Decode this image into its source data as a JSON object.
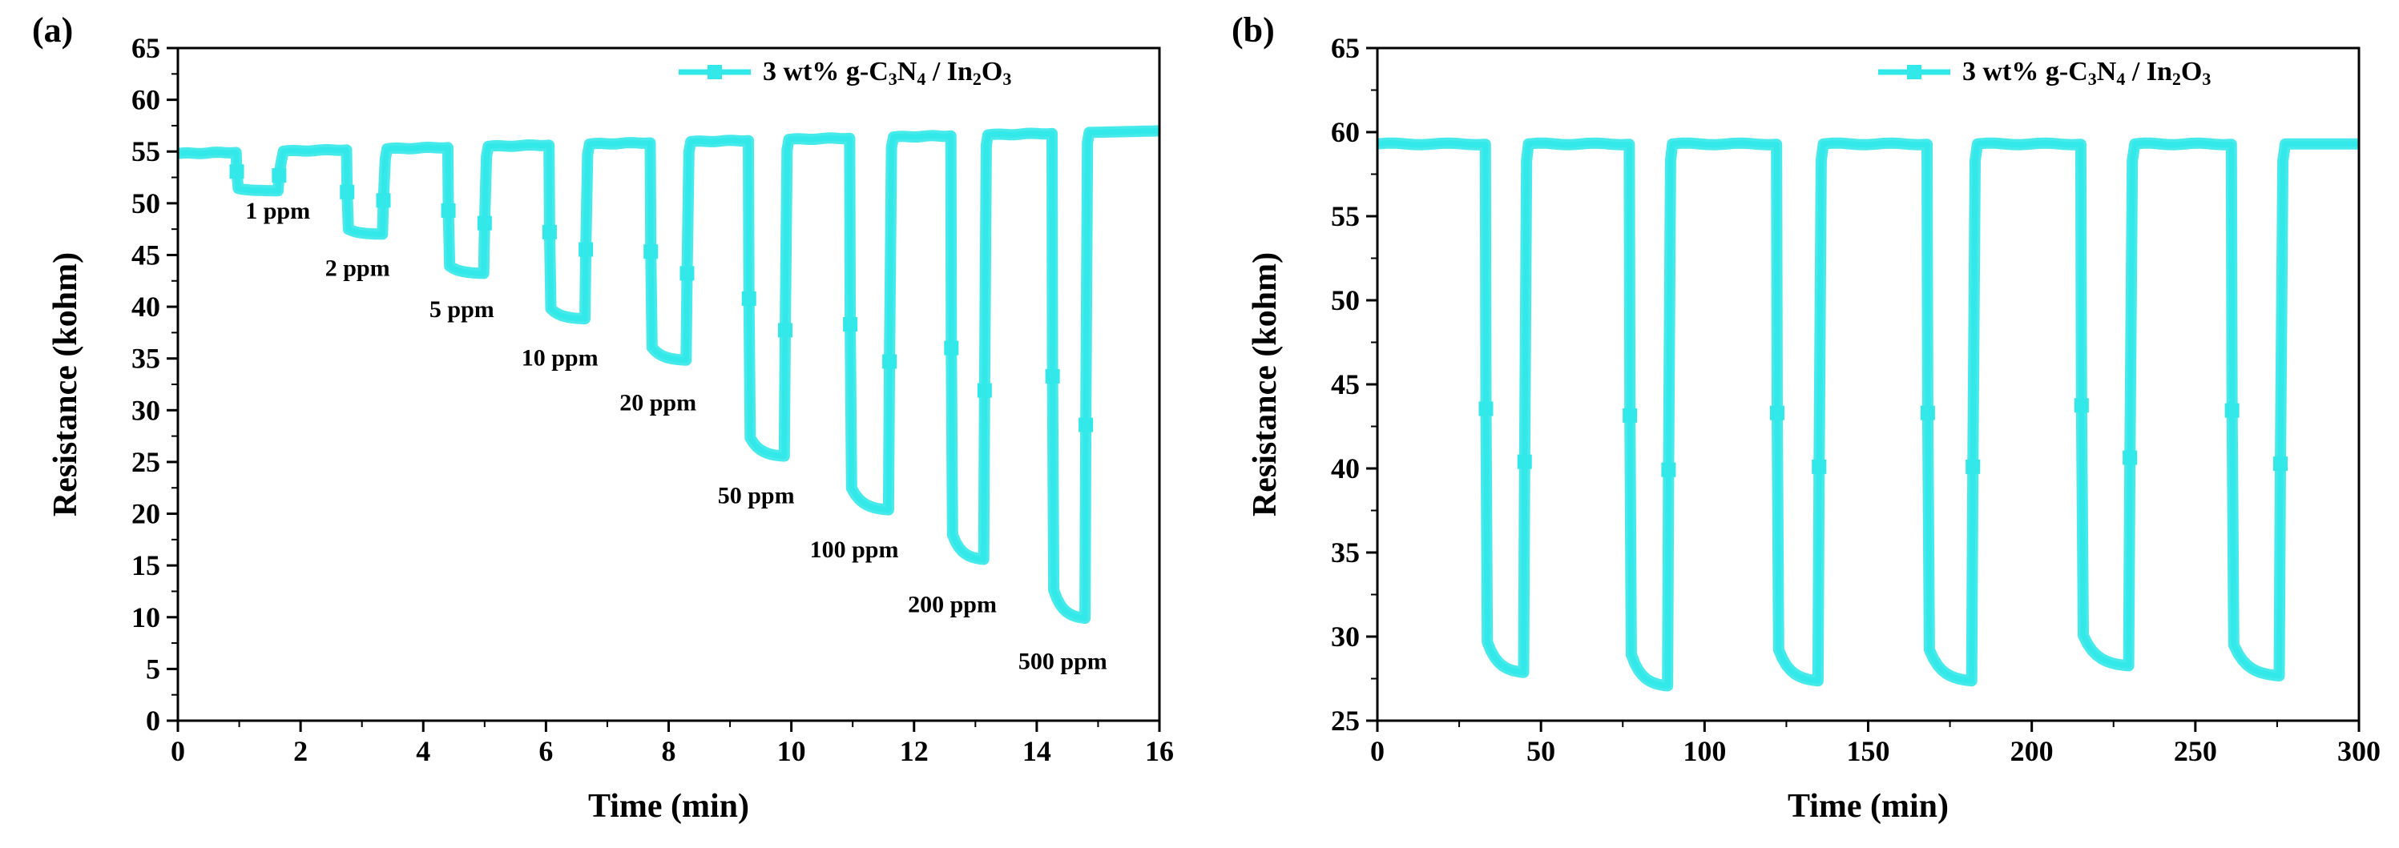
{
  "chart_data": [
    {
      "panel_label": "(a)",
      "type": "line",
      "title": "",
      "xlabel": "Time (min)",
      "ylabel": "Resistance (kohm)",
      "xlim": [
        0,
        16
      ],
      "ylim": [
        0,
        65
      ],
      "xticks": [
        0,
        2,
        4,
        6,
        8,
        10,
        12,
        14,
        16
      ],
      "yticks": [
        0,
        5,
        10,
        15,
        20,
        25,
        30,
        35,
        40,
        45,
        50,
        55,
        60,
        65
      ],
      "legend": "3 wt% g-C3N4 / In2O3",
      "legend_position": "top-right",
      "color": "#33e8e8",
      "baseline_start": 54.8,
      "baseline_end": 57.0,
      "cycles": [
        {
          "label": "1 ppm",
          "t_on": 0.95,
          "t_off": 1.65,
          "min": 51.2,
          "label_x": 1.1,
          "label_y": 48.5
        },
        {
          "label": "2 ppm",
          "t_on": 2.75,
          "t_off": 3.35,
          "min": 47.0,
          "label_x": 2.4,
          "label_y": 43.0
        },
        {
          "label": "5 ppm",
          "t_on": 4.4,
          "t_off": 5.0,
          "min": 43.2,
          "label_x": 4.1,
          "label_y": 39.0
        },
        {
          "label": "10 ppm",
          "t_on": 6.05,
          "t_off": 6.65,
          "min": 38.8,
          "label_x": 5.6,
          "label_y": 34.3
        },
        {
          "label": "20 ppm",
          "t_on": 7.7,
          "t_off": 8.3,
          "min": 34.8,
          "label_x": 7.2,
          "label_y": 30.0
        },
        {
          "label": "50 ppm",
          "t_on": 9.3,
          "t_off": 9.9,
          "min": 25.5,
          "label_x": 8.8,
          "label_y": 21.0
        },
        {
          "label": "100 ppm",
          "t_on": 10.95,
          "t_off": 11.6,
          "min": 20.3,
          "label_x": 10.3,
          "label_y": 15.8
        },
        {
          "label": "200 ppm",
          "t_on": 12.6,
          "t_off": 13.15,
          "min": 15.5,
          "label_x": 11.9,
          "label_y": 10.5
        },
        {
          "label": "500 ppm",
          "t_on": 14.25,
          "t_off": 14.8,
          "min": 9.8,
          "label_x": 13.7,
          "label_y": 5.0
        }
      ]
    },
    {
      "panel_label": "(b)",
      "type": "line",
      "title": "",
      "xlabel": "Time (min)",
      "ylabel": "Resistance (kohm)",
      "xlim": [
        0,
        300
      ],
      "ylim": [
        25,
        65
      ],
      "xticks": [
        0,
        50,
        100,
        150,
        200,
        250,
        300
      ],
      "yticks": [
        25,
        30,
        35,
        40,
        45,
        50,
        55,
        60,
        65
      ],
      "legend": "3 wt% g-C3N4 / In2O3",
      "legend_position": "top-right",
      "color": "#33e8e8",
      "baseline_start": 59.3,
      "baseline_end": 59.3,
      "cycles": [
        {
          "label": "",
          "t_on": 33,
          "t_off": 45,
          "min": 27.8,
          "label_x": 0,
          "label_y": 0
        },
        {
          "label": "",
          "t_on": 77,
          "t_off": 89,
          "min": 27.0,
          "label_x": 0,
          "label_y": 0
        },
        {
          "label": "",
          "t_on": 122,
          "t_off": 135,
          "min": 27.3,
          "label_x": 0,
          "label_y": 0
        },
        {
          "label": "",
          "t_on": 168,
          "t_off": 182,
          "min": 27.3,
          "label_x": 0,
          "label_y": 0
        },
        {
          "label": "",
          "t_on": 215,
          "t_off": 230,
          "min": 28.2,
          "label_x": 0,
          "label_y": 0
        },
        {
          "label": "",
          "t_on": 261,
          "t_off": 276,
          "min": 27.6,
          "label_x": 0,
          "label_y": 0
        }
      ]
    }
  ]
}
